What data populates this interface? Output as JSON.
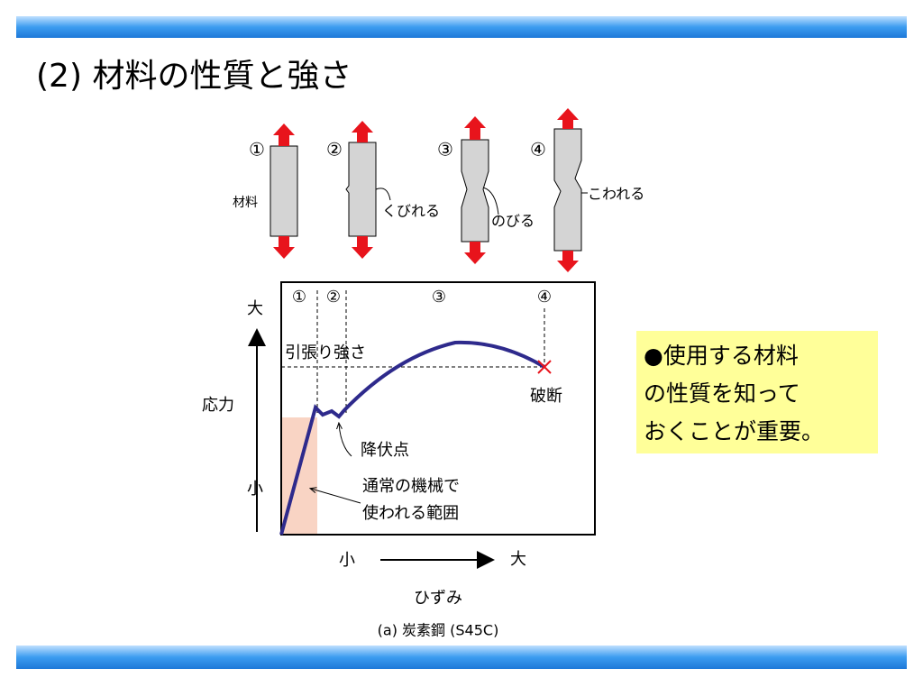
{
  "header": {
    "title": "(2) 材料の性質と強さ"
  },
  "specimens": {
    "numbers": [
      "①",
      "②",
      "③",
      "④"
    ],
    "labels": [
      "材料",
      "くびれる",
      "のびる",
      "こわれる"
    ]
  },
  "graph": {
    "stage_numbers": [
      "①",
      "②",
      "③",
      "④"
    ],
    "y_high": "大",
    "y_label": "応力",
    "y_low": "小",
    "tensile_strength": "引張り強さ",
    "fracture": "破断",
    "yield_point": "降伏点",
    "range_label": [
      "通常の機械で",
      "使われる範囲"
    ],
    "x_low": "小",
    "x_high": "大",
    "x_label": "ひずみ",
    "caption": "(a) 炭素鋼 (S45C)"
  },
  "note": {
    "lines": [
      "●使用する材料",
      "の性質を知って",
      "おくことが重要。"
    ]
  }
}
